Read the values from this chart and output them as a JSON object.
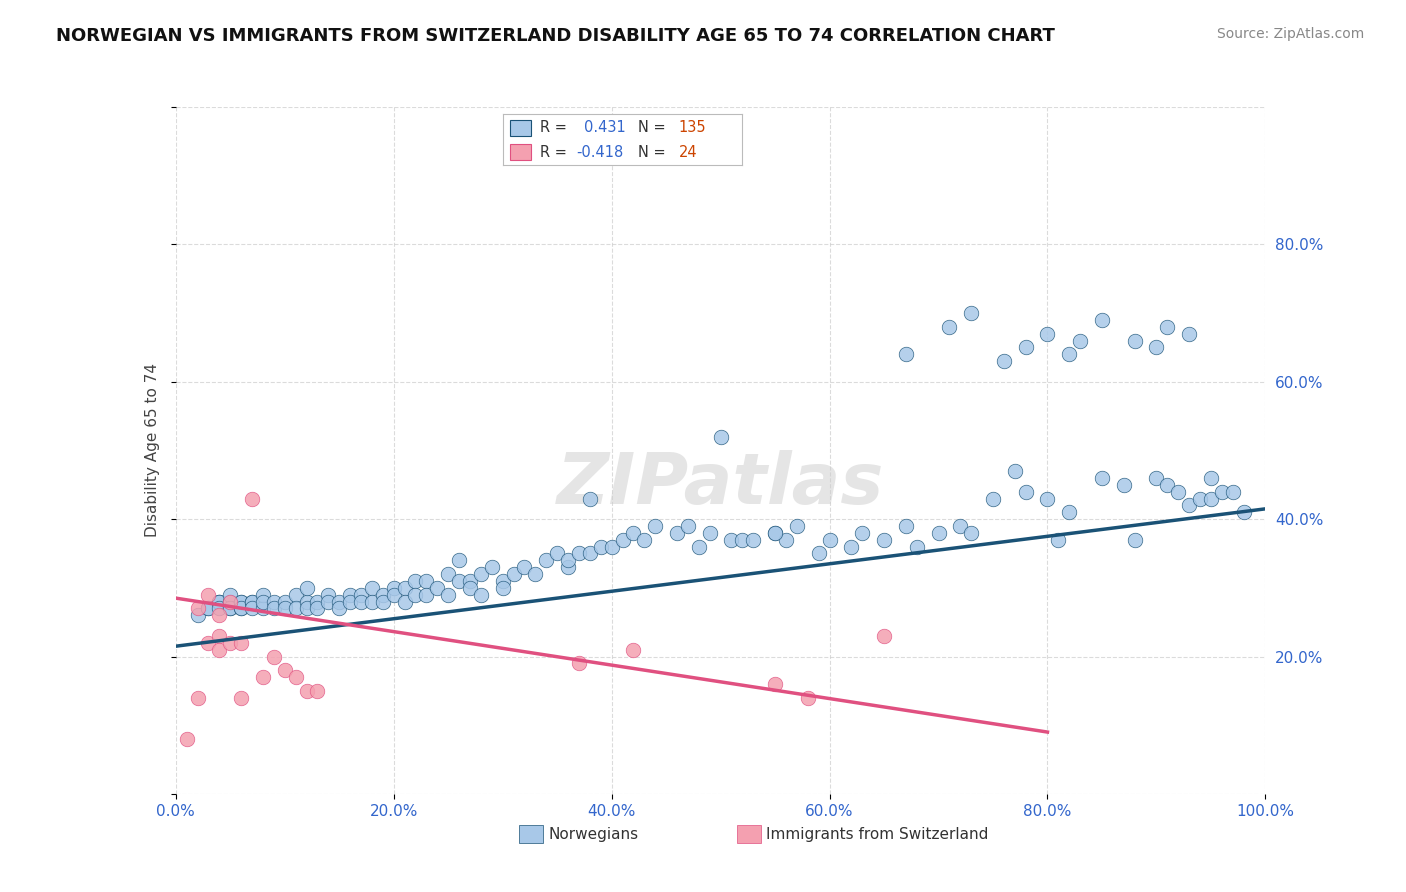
{
  "title": "NORWEGIAN VS IMMIGRANTS FROM SWITZERLAND DISABILITY AGE 65 TO 74 CORRELATION CHART",
  "source": "Source: ZipAtlas.com",
  "ylabel": "Disability Age 65 to 74",
  "xlim": [
    0.0,
    1.0
  ],
  "ylim": [
    0.0,
    1.0
  ],
  "xticks": [
    0.0,
    0.2,
    0.4,
    0.6,
    0.8,
    1.0
  ],
  "yticks": [
    0.0,
    0.2,
    0.4,
    0.6,
    0.8,
    1.0
  ],
  "xticklabels": [
    "0.0%",
    "20.0%",
    "40.0%",
    "60.0%",
    "80.0%",
    "100.0%"
  ],
  "right_yticklabels": [
    "20.0%",
    "40.0%",
    "60.0%",
    "80.0%"
  ],
  "right_yticks": [
    0.2,
    0.4,
    0.6,
    0.8
  ],
  "blue_color": "#a8c8e8",
  "blue_line_color": "#1a5276",
  "pink_color": "#f4a0b0",
  "pink_line_color": "#e05080",
  "background_color": "#ffffff",
  "grid_color": "#cccccc",
  "blue_x": [
    0.02,
    0.03,
    0.03,
    0.04,
    0.04,
    0.04,
    0.04,
    0.05,
    0.05,
    0.05,
    0.05,
    0.05,
    0.06,
    0.06,
    0.06,
    0.06,
    0.07,
    0.07,
    0.07,
    0.08,
    0.08,
    0.08,
    0.09,
    0.09,
    0.1,
    0.1,
    0.11,
    0.11,
    0.12,
    0.12,
    0.12,
    0.13,
    0.13,
    0.14,
    0.14,
    0.15,
    0.15,
    0.16,
    0.16,
    0.17,
    0.17,
    0.18,
    0.18,
    0.19,
    0.19,
    0.2,
    0.2,
    0.21,
    0.21,
    0.22,
    0.22,
    0.23,
    0.23,
    0.24,
    0.25,
    0.25,
    0.26,
    0.26,
    0.27,
    0.27,
    0.28,
    0.28,
    0.29,
    0.3,
    0.3,
    0.31,
    0.32,
    0.33,
    0.34,
    0.35,
    0.36,
    0.36,
    0.37,
    0.38,
    0.39,
    0.4,
    0.41,
    0.42,
    0.43,
    0.44,
    0.46,
    0.47,
    0.48,
    0.49,
    0.5,
    0.51,
    0.52,
    0.53,
    0.55,
    0.56,
    0.57,
    0.59,
    0.6,
    0.62,
    0.63,
    0.65,
    0.67,
    0.68,
    0.7,
    0.72,
    0.73,
    0.75,
    0.77,
    0.78,
    0.8,
    0.81,
    0.82,
    0.85,
    0.87,
    0.88,
    0.9,
    0.91,
    0.92,
    0.93,
    0.94,
    0.95,
    0.95,
    0.96,
    0.97,
    0.98,
    0.38,
    0.55,
    0.67,
    0.71,
    0.73,
    0.76,
    0.78,
    0.8,
    0.82,
    0.83,
    0.85,
    0.88,
    0.9,
    0.91,
    0.93
  ],
  "blue_y": [
    0.26,
    0.27,
    0.27,
    0.28,
    0.28,
    0.28,
    0.27,
    0.27,
    0.28,
    0.28,
    0.29,
    0.27,
    0.27,
    0.28,
    0.28,
    0.27,
    0.28,
    0.28,
    0.27,
    0.27,
    0.29,
    0.28,
    0.28,
    0.27,
    0.28,
    0.27,
    0.29,
    0.27,
    0.28,
    0.3,
    0.27,
    0.28,
    0.27,
    0.29,
    0.28,
    0.28,
    0.27,
    0.29,
    0.28,
    0.29,
    0.28,
    0.3,
    0.28,
    0.29,
    0.28,
    0.3,
    0.29,
    0.3,
    0.28,
    0.31,
    0.29,
    0.31,
    0.29,
    0.3,
    0.29,
    0.32,
    0.34,
    0.31,
    0.31,
    0.3,
    0.32,
    0.29,
    0.33,
    0.31,
    0.3,
    0.32,
    0.33,
    0.32,
    0.34,
    0.35,
    0.33,
    0.34,
    0.35,
    0.35,
    0.36,
    0.36,
    0.37,
    0.38,
    0.37,
    0.39,
    0.38,
    0.39,
    0.36,
    0.38,
    0.52,
    0.37,
    0.37,
    0.37,
    0.38,
    0.37,
    0.39,
    0.35,
    0.37,
    0.36,
    0.38,
    0.37,
    0.39,
    0.36,
    0.38,
    0.39,
    0.38,
    0.43,
    0.47,
    0.44,
    0.43,
    0.37,
    0.41,
    0.46,
    0.45,
    0.37,
    0.46,
    0.45,
    0.44,
    0.42,
    0.43,
    0.46,
    0.43,
    0.44,
    0.44,
    0.41,
    0.43,
    0.38,
    0.64,
    0.68,
    0.7,
    0.63,
    0.65,
    0.67,
    0.64,
    0.66,
    0.69,
    0.66,
    0.65,
    0.68,
    0.67
  ],
  "pink_x": [
    0.01,
    0.02,
    0.02,
    0.03,
    0.03,
    0.04,
    0.04,
    0.04,
    0.05,
    0.05,
    0.06,
    0.06,
    0.07,
    0.08,
    0.09,
    0.1,
    0.11,
    0.12,
    0.13,
    0.37,
    0.42,
    0.55,
    0.58,
    0.65
  ],
  "pink_y": [
    0.08,
    0.14,
    0.27,
    0.22,
    0.29,
    0.26,
    0.23,
    0.21,
    0.22,
    0.28,
    0.22,
    0.14,
    0.43,
    0.17,
    0.2,
    0.18,
    0.17,
    0.15,
    0.15,
    0.19,
    0.21,
    0.16,
    0.14,
    0.23
  ],
  "blue_line_x": [
    0.0,
    1.0
  ],
  "blue_line_y": [
    0.215,
    0.415
  ],
  "pink_line_x": [
    0.0,
    0.8
  ],
  "pink_line_y": [
    0.285,
    0.09
  ],
  "title_fontsize": 13,
  "source_fontsize": 10,
  "axis_label_fontsize": 11,
  "tick_fontsize": 11
}
